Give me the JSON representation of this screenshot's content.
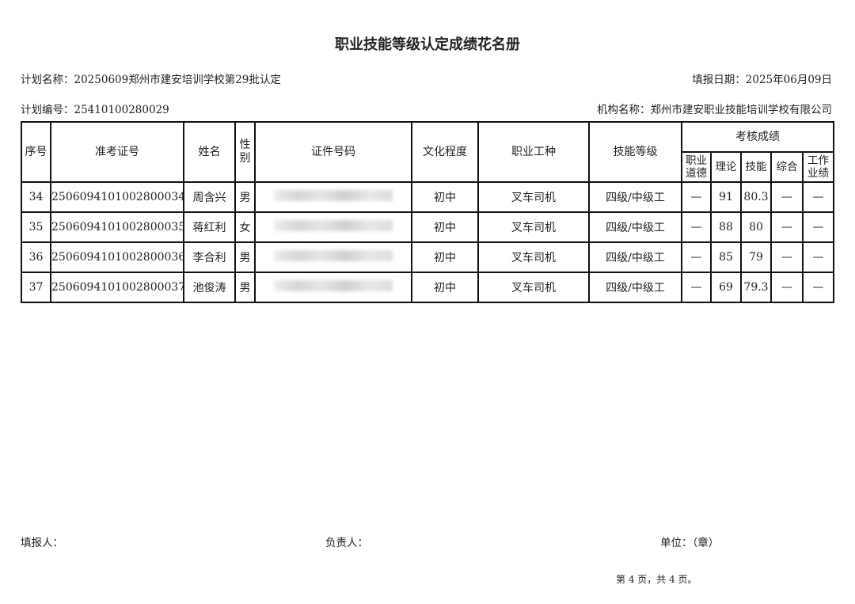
{
  "title": "职业技能等级认定成绩花名册",
  "plan_name": "计划名称：20250609郑州市建安培训学校第29批认定",
  "fill_date": "填报日期：2025年06月09日",
  "plan_number": "计划编号：25410100280029",
  "org_name": "机构名称：郑州市建安职业技能培训学校有限公司",
  "headers": {
    "seq": "序号",
    "ticket": "准考证号",
    "name": "姓名",
    "gender": "性别",
    "id": "证件号码",
    "education": "文化程度",
    "occupation": "职业工种",
    "level": "技能等级",
    "scores": "考核成绩",
    "ethics": "职业道德",
    "theory": "理论",
    "skill": "技能",
    "overall": "综合",
    "performance": "工作业绩"
  },
  "rows": [
    {
      "seq": "34",
      "ticket": "2506094101002800034",
      "name": "周含兴",
      "gender": "男",
      "education": "初中",
      "occupation": "叉车司机",
      "level": "四级/中级工",
      "ethics": "—",
      "theory": "91",
      "skill": "80.3",
      "overall": "—",
      "performance": "—"
    },
    {
      "seq": "35",
      "ticket": "2506094101002800035",
      "name": "蒋红利",
      "gender": "女",
      "education": "初中",
      "occupation": "叉车司机",
      "level": "四级/中级工",
      "ethics": "—",
      "theory": "88",
      "skill": "80",
      "overall": "—",
      "performance": "—"
    },
    {
      "seq": "36",
      "ticket": "2506094101002800036",
      "name": "李合利",
      "gender": "男",
      "education": "初中",
      "occupation": "叉车司机",
      "level": "四级/中级工",
      "ethics": "—",
      "theory": "85",
      "skill": "79",
      "overall": "—",
      "performance": "—"
    },
    {
      "seq": "37",
      "ticket": "2506094101002800037",
      "name": "池俊涛",
      "gender": "男",
      "education": "初中",
      "occupation": "叉车司机",
      "level": "四级/中级工",
      "ethics": "—",
      "theory": "69",
      "skill": "79.3",
      "overall": "—",
      "performance": "—"
    }
  ],
  "footer": {
    "filler": "填报人：",
    "responsible": "负责人：",
    "unit": "单位：（章）",
    "page": "第 4 页，共 4 页。"
  }
}
